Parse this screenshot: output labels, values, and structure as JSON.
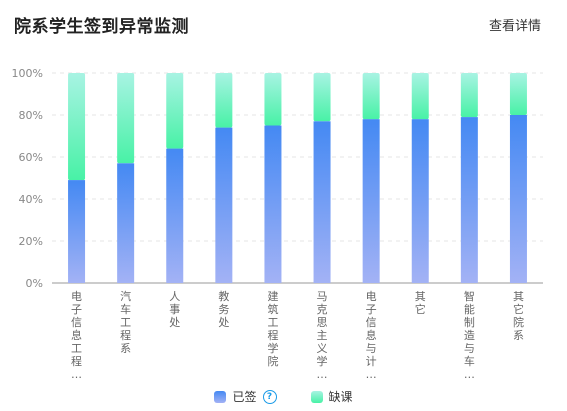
{
  "header": {
    "title": "院系学生签到异常监测",
    "detail_link": "查看详情"
  },
  "legend": {
    "signed_label": "已签",
    "help_glyph": "?",
    "absent_label": "缺课"
  },
  "colors": {
    "signed_top": "#4489f3",
    "signed_bottom": "#a3b2f5",
    "absent_top": "#a8f3e3",
    "absent_bottom": "#48f2a6",
    "help": "#1a9be8"
  },
  "chart_data": {
    "type": "bar",
    "stacked": true,
    "categories": [
      "电子信息工程…",
      "汽车工程系",
      "人事处",
      "教务处",
      "建筑工程学院",
      "马克思主义学…",
      "电子信息与计…",
      "其它",
      "智能制造与车…",
      "其它院系"
    ],
    "series": [
      {
        "name": "已签",
        "values": [
          49,
          57,
          64,
          74,
          75,
          77,
          78,
          78,
          79,
          80
        ]
      },
      {
        "name": "缺课",
        "values": [
          51,
          43,
          36,
          26,
          25,
          23,
          22,
          22,
          21,
          20
        ]
      }
    ],
    "ylim": [
      0,
      100
    ],
    "yticks": [
      "0%",
      "20%",
      "40%",
      "60%",
      "80%",
      "100%"
    ],
    "grid": true,
    "legend_position": "bottom"
  }
}
